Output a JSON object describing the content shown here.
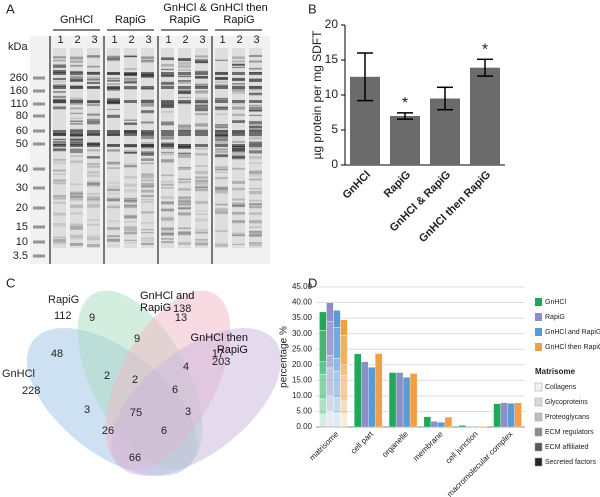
{
  "panel_labels": [
    "A",
    "B",
    "C",
    "D"
  ],
  "gel": {
    "unit": "kDa",
    "markers": [
      "260",
      "160",
      "110",
      "80",
      "60",
      "50",
      "40",
      "30",
      "20",
      "15",
      "10",
      "3.5"
    ],
    "groups": [
      "GnHCl",
      "RapiG",
      "GnHCl & RapiG",
      "GnHCl then RapiG"
    ],
    "lanes": [
      "1",
      "2",
      "3"
    ]
  },
  "chart_data": [
    {
      "type": "bar",
      "y_label": "µg protein per mg SDFT",
      "categories": [
        "GnHCl",
        "RapiG",
        "GnHCl & RapiG",
        "GnHCl then RapiG"
      ],
      "values": [
        12.6,
        7.0,
        9.5,
        13.9
      ],
      "errors": [
        3.4,
        0.45,
        1.6,
        1.2
      ],
      "annotations": [
        null,
        "*",
        null,
        "*"
      ],
      "color": "#6b6b6b",
      "ylim": [
        0,
        20
      ],
      "yticks": [
        0,
        5,
        10,
        15,
        20
      ]
    },
    {
      "type": "grouped_bar",
      "y_label": "percentage %",
      "categories": [
        "matrisome",
        "cell part",
        "organelle",
        "membrane",
        "cell junction",
        "macromolecular complex"
      ],
      "series": [
        {
          "name": "GnHCl",
          "color": "#1fa85a",
          "values": [
            null,
            23.5,
            17.5,
            3.3,
            0.5,
            7.5
          ]
        },
        {
          "name": "RapiG",
          "color": "#8a8fc8",
          "values": [
            null,
            21,
            17.5,
            1.8,
            0.2,
            7.8
          ]
        },
        {
          "name": "GnHCl and RapiG",
          "color": "#5b9bd5",
          "values": [
            null,
            19.2,
            16,
            1.5,
            0.2,
            7.6
          ]
        },
        {
          "name": "GnHCl then RapiG",
          "color": "#f0a044",
          "values": [
            null,
            23.6,
            17.2,
            3.2,
            0.2,
            7.8
          ]
        }
      ],
      "stack_title": "Matrisome",
      "stack_components": [
        {
          "name": "Collagens",
          "color": "#f2f2f2"
        },
        {
          "name": "Glycoproteins",
          "color": "#d9d9d9"
        },
        {
          "name": "Proteoglycans",
          "color": "#bfbfbf"
        },
        {
          "name": "ECM regulators",
          "color": "#8c8c8c"
        },
        {
          "name": "ECM affiliated",
          "color": "#595959"
        },
        {
          "name": "Secreted factors",
          "color": "#262626"
        }
      ],
      "stack_values": [
        [
          6,
          10,
          4,
          8,
          5,
          4
        ],
        [
          6,
          11,
          4,
          9,
          5,
          5
        ],
        [
          5.5,
          10,
          4,
          8.5,
          5,
          4.5
        ],
        [
          5,
          9.5,
          3.5,
          8,
          4.5,
          4
        ]
      ],
      "ylim": [
        0,
        45
      ],
      "yticks": [
        {
          "value": 0,
          "label": "0.00"
        },
        {
          "value": 5,
          "label": "5.00"
        },
        {
          "value": 10,
          "label": "10.00"
        },
        {
          "value": 15,
          "label": "15.00"
        },
        {
          "value": 20,
          "label": "20.00"
        },
        {
          "value": 25,
          "label": "25.00"
        },
        {
          "value": 30,
          "label": "30.00"
        },
        {
          "value": 35,
          "label": "35.00"
        },
        {
          "value": 40,
          "label": "40.00"
        },
        {
          "value": 45,
          "label": "45.00"
        }
      ]
    }
  ],
  "venn": {
    "sets": [
      {
        "name": "GnHCl",
        "total": "228"
      },
      {
        "name": "RapiG",
        "total": "112"
      },
      {
        "name": "GnHCl and RapiG",
        "total": "138"
      },
      {
        "name": "GnHCl then RapiG",
        "total": "203"
      }
    ],
    "regions": [
      "48",
      "9",
      "13",
      "17",
      "2",
      "9",
      "4",
      "2",
      "6",
      "3",
      "3",
      "75",
      "26",
      "6",
      "66"
    ]
  }
}
